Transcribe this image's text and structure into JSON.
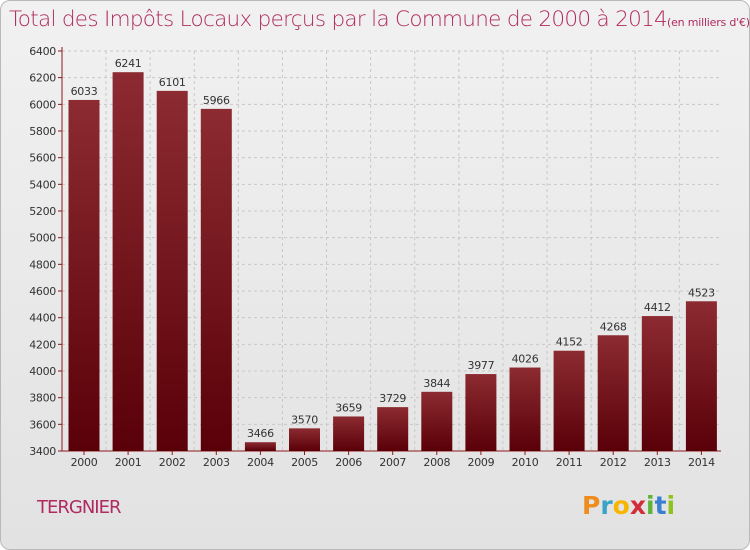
{
  "title": {
    "main": "Total des Impôts Locaux perçus par la Commune de 2000 à 2014",
    "unit": "(en milliers d'€)"
  },
  "commune": "TERGNIER",
  "logo": {
    "letters": [
      "P",
      "r",
      "o",
      "x",
      "i",
      "t",
      "i"
    ],
    "text": "Proxiti"
  },
  "colors": {
    "bar_top": "#8c2b31",
    "bar_bottom": "#5a0008",
    "title": "#b02a5f",
    "axis": "#8a1a1a"
  },
  "chart_data": {
    "type": "bar",
    "categories": [
      "2000",
      "2001",
      "2002",
      "2003",
      "2004",
      "2005",
      "2006",
      "2007",
      "2008",
      "2009",
      "2010",
      "2011",
      "2012",
      "2013",
      "2014"
    ],
    "values": [
      6033,
      6241,
      6101,
      5966,
      3466,
      3570,
      3659,
      3729,
      3844,
      3977,
      4026,
      4152,
      4268,
      4412,
      4523
    ],
    "ylim": [
      3400,
      6400
    ],
    "yticks": [
      3400,
      3600,
      3800,
      4000,
      4200,
      4400,
      4600,
      4800,
      5000,
      5200,
      5400,
      5600,
      5800,
      6000,
      6200,
      6400
    ],
    "grid": true,
    "xlabel": "",
    "ylabel": ""
  }
}
